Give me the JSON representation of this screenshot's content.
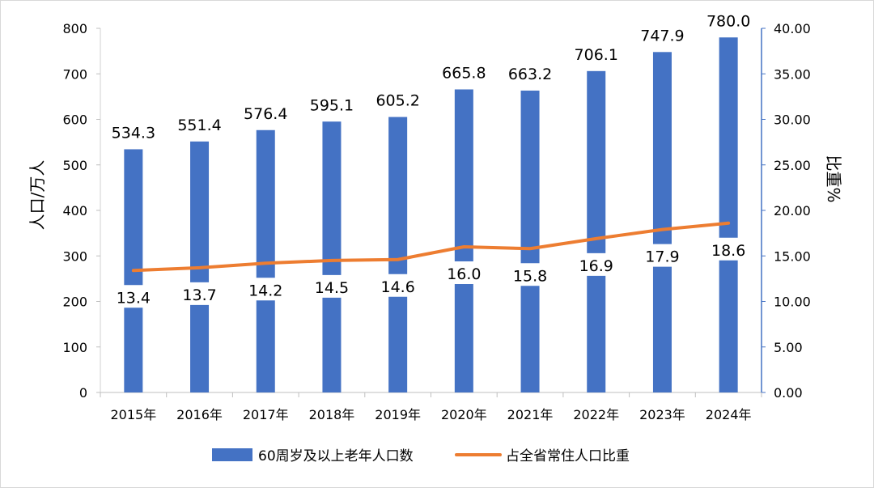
{
  "chart_data": {
    "type": "bar+line",
    "categories": [
      "2015年",
      "2016年",
      "2017年",
      "2018年",
      "2019年",
      "2020年",
      "2021年",
      "2022年",
      "2023年",
      "2024年"
    ],
    "series": [
      {
        "name": "60周岁及以上老年人口数",
        "type": "bar",
        "axis": "left",
        "values": [
          534.3,
          551.4,
          576.4,
          595.1,
          605.2,
          665.8,
          663.2,
          706.1,
          747.9,
          780.0
        ],
        "labels": [
          "534.3",
          "551.4",
          "576.4",
          "595.1",
          "605.2",
          "665.8",
          "663.2",
          "706.1",
          "747.9",
          "780.0"
        ],
        "color": "#4472C4"
      },
      {
        "name": "占全省常住人口比重",
        "type": "line",
        "axis": "right",
        "values": [
          13.4,
          13.7,
          14.2,
          14.5,
          14.6,
          16.0,
          15.8,
          16.9,
          17.9,
          18.6
        ],
        "labels": [
          "13.4",
          "13.7",
          "14.2",
          "14.5",
          "14.6",
          "16.0",
          "15.8",
          "16.9",
          "17.9",
          "18.6"
        ],
        "color": "#ED7D31"
      }
    ],
    "y_left": {
      "label": "人口/万人",
      "ylim": [
        0,
        800
      ],
      "ticks": [
        "0",
        "100",
        "200",
        "300",
        "400",
        "500",
        "600",
        "700",
        "800"
      ]
    },
    "y_right": {
      "label": "比重%",
      "ylim": [
        0,
        40
      ],
      "ticks": [
        "0.00",
        "5.00",
        "10.00",
        "15.00",
        "20.00",
        "25.00",
        "30.00",
        "35.00",
        "40.00"
      ]
    },
    "legend_position": "bottom",
    "grid": false
  }
}
